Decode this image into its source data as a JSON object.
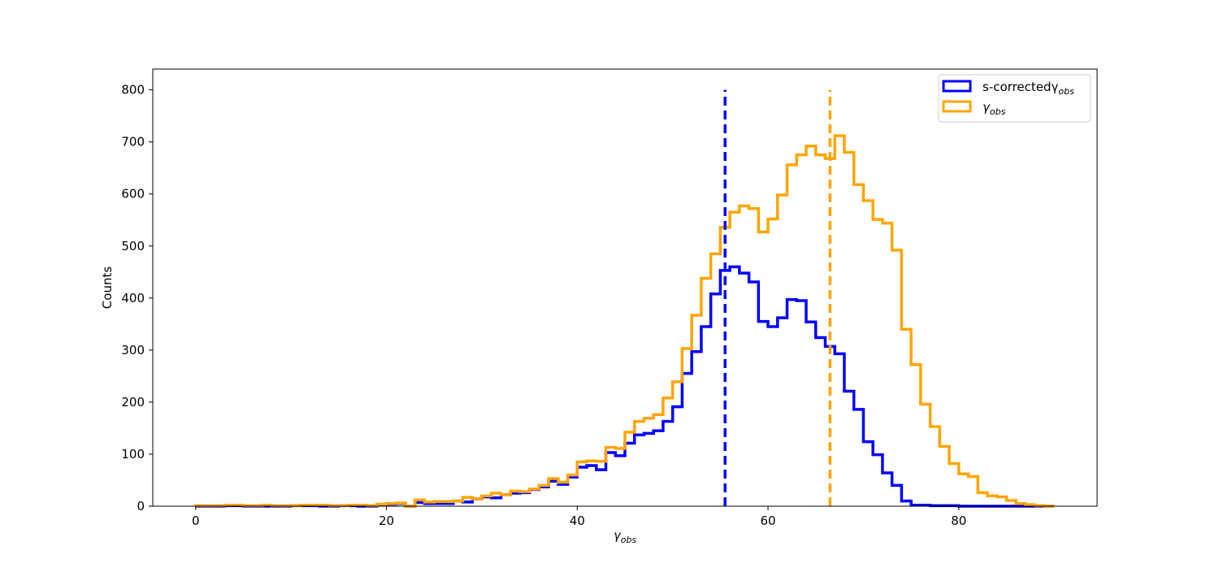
{
  "chart_data": {
    "type": "histogram",
    "bin_width": 1,
    "x_start": 0,
    "xlabel": "γ",
    "xlabel_sub": "obs",
    "ylabel": "Counts",
    "xlim": [
      -4.5,
      94.5
    ],
    "ylim": [
      0,
      840
    ],
    "xticks": [
      0,
      20,
      40,
      60,
      80
    ],
    "yticks": [
      0,
      100,
      200,
      300,
      400,
      500,
      600,
      700,
      800
    ],
    "grid": false,
    "legend_position": "top-right",
    "series": [
      {
        "name": "s-correctedγ",
        "name_sub": "obs",
        "color": "#0000ff",
        "mean_line": 55.5,
        "values": [
          0,
          0,
          0,
          1,
          1,
          0,
          0,
          0,
          0,
          0,
          1,
          1,
          1,
          0,
          0,
          1,
          1,
          0,
          0,
          3,
          4,
          5,
          0,
          7,
          5,
          5,
          5,
          10,
          8,
          14,
          18,
          16,
          22,
          25,
          26,
          32,
          37,
          48,
          42,
          56,
          75,
          78,
          70,
          103,
          97,
          121,
          137,
          140,
          145,
          163,
          191,
          255,
          297,
          345,
          408,
          453,
          460,
          448,
          431,
          355,
          345,
          362,
          397,
          395,
          354,
          324,
          307,
          293,
          221,
          186,
          124,
          99,
          64,
          40,
          10,
          2,
          2,
          1,
          1,
          1,
          0,
          0,
          0,
          0,
          0,
          0,
          0,
          0,
          0,
          0
        ]
      },
      {
        "name": "γ",
        "name_sub": "obs",
        "color": "#ffa500",
        "mean_line": 66.5,
        "values": [
          1,
          1,
          1,
          2,
          2,
          1,
          1,
          2,
          1,
          1,
          1,
          2,
          2,
          2,
          1,
          1,
          2,
          2,
          1,
          4,
          5,
          6,
          0,
          12,
          8,
          9,
          9,
          10,
          17,
          14,
          20,
          25,
          22,
          29,
          28,
          33,
          40,
          53,
          46,
          60,
          85,
          87,
          86,
          113,
          111,
          142,
          163,
          169,
          176,
          208,
          239,
          303,
          367,
          438,
          485,
          536,
          565,
          577,
          572,
          527,
          552,
          598,
          656,
          675,
          692,
          675,
          668,
          712,
          680,
          618,
          587,
          551,
          544,
          492,
          340,
          272,
          196,
          153,
          115,
          82,
          62,
          57,
          26,
          20,
          18,
          11,
          5,
          3,
          1,
          0
        ]
      }
    ]
  }
}
